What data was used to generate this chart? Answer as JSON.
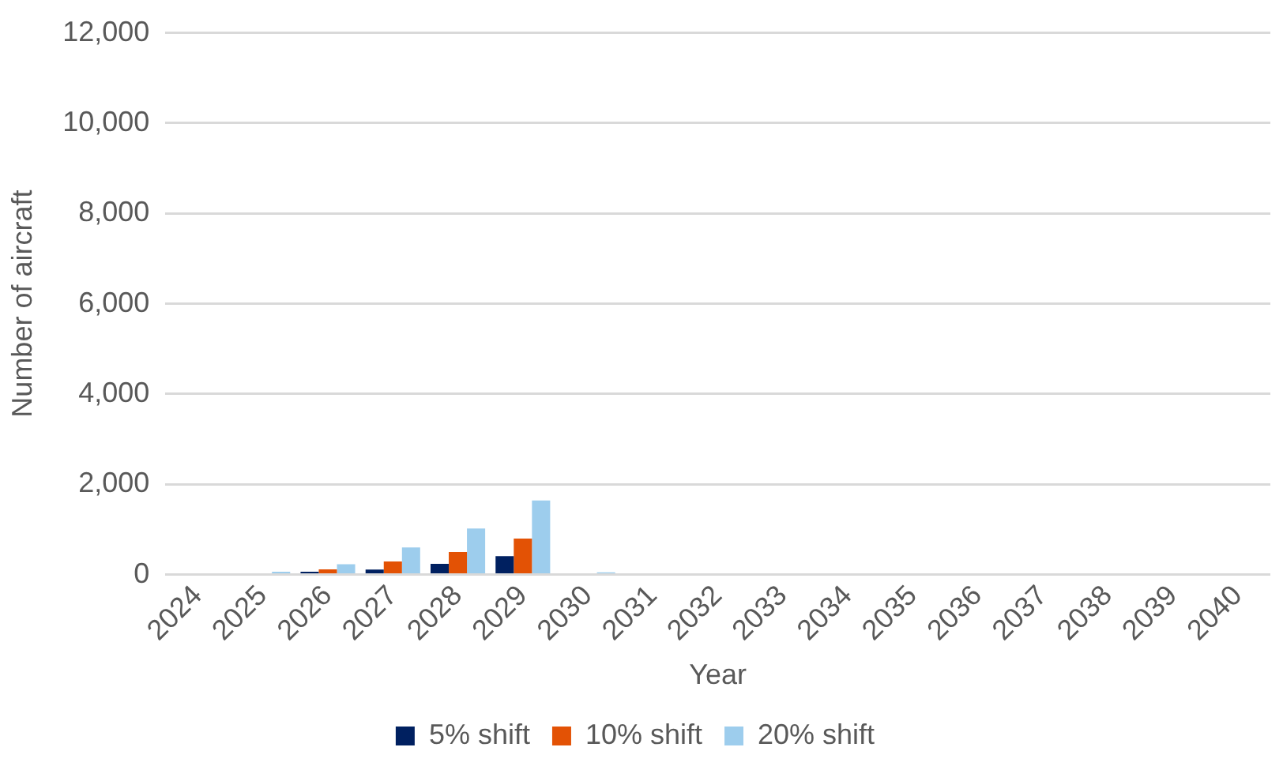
{
  "chart_data": {
    "type": "bar",
    "xlabel": "Year",
    "ylabel": "Number of aircraft",
    "categories": [
      "2024",
      "2025",
      "2026",
      "2027",
      "2028",
      "2029",
      "2030",
      "2031",
      "2032",
      "2033",
      "2034",
      "2035",
      "2036",
      "2037",
      "2038",
      "2039",
      "2040"
    ],
    "series": [
      {
        "name": "5% shift",
        "color": "#002060",
        "values": [
          0,
          0,
          65,
          110,
          240,
          410,
          0,
          0,
          0,
          0,
          0,
          0,
          0,
          0,
          0,
          0,
          0
        ]
      },
      {
        "name": "10% shift",
        "color": "#e35205",
        "values": [
          0,
          0,
          115,
          290,
          500,
          800,
          0,
          0,
          0,
          0,
          0,
          0,
          0,
          0,
          0,
          0,
          0
        ]
      },
      {
        "name": "20% shift",
        "color": "#9dcded",
        "values": [
          0,
          65,
          230,
          600,
          1020,
          1640,
          50,
          0,
          0,
          0,
          0,
          0,
          0,
          0,
          0,
          0,
          0
        ]
      }
    ],
    "ylim": [
      0,
      12000
    ],
    "yticks": [
      {
        "value": 0,
        "label": "0"
      },
      {
        "value": 2000,
        "label": "2,000"
      },
      {
        "value": 4000,
        "label": "4,000"
      },
      {
        "value": 6000,
        "label": "6,000"
      },
      {
        "value": 8000,
        "label": "8,000"
      },
      {
        "value": 10000,
        "label": "10,000"
      },
      {
        "value": 12000,
        "label": "12,000"
      }
    ],
    "grid": "y",
    "legend": "bottom"
  }
}
